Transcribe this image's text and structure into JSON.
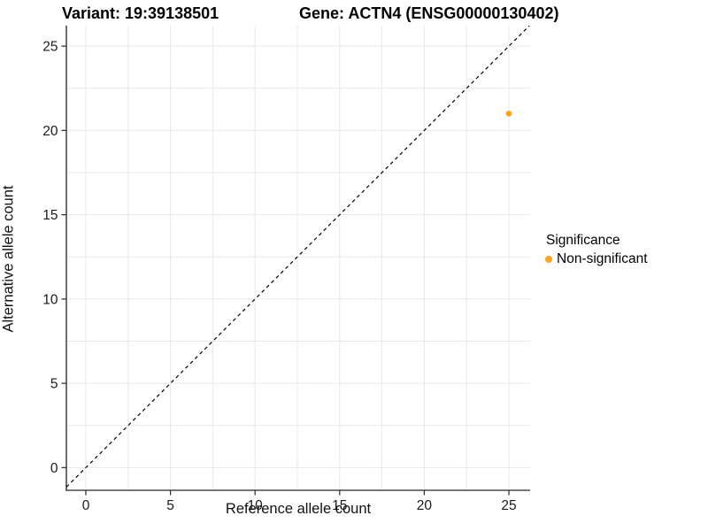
{
  "titles": {
    "variant": "Variant: 19:39138501",
    "gene": "Gene: ACTN4 (ENSG00000130402)"
  },
  "axes": {
    "x_label": "Reference allele count",
    "y_label": "Alternative allele count"
  },
  "legend": {
    "title": "Significance",
    "items": [
      {
        "label": "Non-significant",
        "color": "#FFA320"
      }
    ]
  },
  "colors": {
    "point_orange": "#FFA320",
    "gridline": "#E8E8E8",
    "axis_line": "#4A4A4A",
    "tick_mark": "#333333",
    "tick_label": "#1A1A1A",
    "identity_line": "#000000",
    "background": "#FFFFFF"
  },
  "chart_data": {
    "type": "scatter",
    "title": "Variant: 19:39138501   Gene: ACTN4 (ENSG00000130402)",
    "xlabel": "Reference allele count",
    "ylabel": "Alternative allele count",
    "x_ticks": [
      0,
      5,
      10,
      15,
      20,
      25
    ],
    "y_ticks": [
      0,
      5,
      10,
      15,
      20,
      25
    ],
    "xlim": [
      -1.15,
      26.25
    ],
    "ylim": [
      -1.34,
      26.2
    ],
    "grid_interval": 2.5,
    "grid": true,
    "points": [
      {
        "x": 25,
        "y": 21,
        "series": "Non-significant",
        "color": "#FFA320"
      }
    ],
    "reference_line": {
      "kind": "identity",
      "equation": "y = x",
      "style": "dashed",
      "color": "#000000"
    },
    "legend_position": "right",
    "legend_title": "Significance"
  }
}
